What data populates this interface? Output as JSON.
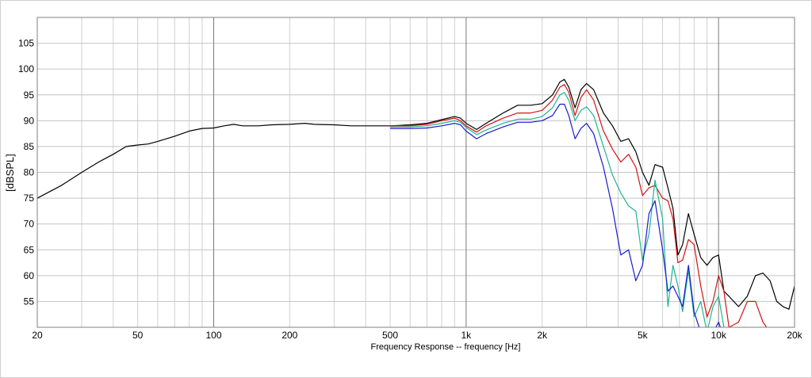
{
  "chart_data": {
    "type": "line",
    "title": "",
    "xlabel": "Frequency Response -- frequency [Hz]",
    "ylabel": "[dBSPL]",
    "xscale": "log",
    "xlim": [
      20,
      20000
    ],
    "ylim": [
      50,
      110
    ],
    "grid": true,
    "legend": "none",
    "x_tick_labels": [
      {
        "value": 20,
        "label": "20"
      },
      {
        "value": 50,
        "label": "50"
      },
      {
        "value": 100,
        "label": "100"
      },
      {
        "value": 200,
        "label": "200"
      },
      {
        "value": 500,
        "label": "500"
      },
      {
        "value": 1000,
        "label": "1k"
      },
      {
        "value": 2000,
        "label": "2k"
      },
      {
        "value": 5000,
        "label": "5k"
      },
      {
        "value": 10000,
        "label": "10k"
      },
      {
        "value": 20000,
        "label": "20k"
      }
    ],
    "y_tick_labels": [
      {
        "value": 55,
        "label": "55"
      },
      {
        "value": 60,
        "label": "60"
      },
      {
        "value": 65,
        "label": "65"
      },
      {
        "value": 70,
        "label": "70"
      },
      {
        "value": 75,
        "label": "75"
      },
      {
        "value": 80,
        "label": "80"
      },
      {
        "value": 85,
        "label": "85"
      },
      {
        "value": 90,
        "label": "90"
      },
      {
        "value": 95,
        "label": "95"
      },
      {
        "value": 100,
        "label": "100"
      },
      {
        "value": 105,
        "label": "105"
      }
    ],
    "series": [
      {
        "color": "#000000",
        "points": [
          [
            20,
            75
          ],
          [
            25,
            77.5
          ],
          [
            30,
            80
          ],
          [
            35,
            82
          ],
          [
            40,
            83.5
          ],
          [
            45,
            85
          ],
          [
            50,
            85.3
          ],
          [
            55,
            85.5
          ],
          [
            60,
            86
          ],
          [
            70,
            87
          ],
          [
            80,
            88
          ],
          [
            90,
            88.5
          ],
          [
            100,
            88.6
          ],
          [
            110,
            89
          ],
          [
            120,
            89.3
          ],
          [
            130,
            89
          ],
          [
            150,
            89
          ],
          [
            170,
            89.2
          ],
          [
            200,
            89.3
          ],
          [
            230,
            89.5
          ],
          [
            250,
            89.3
          ],
          [
            300,
            89.2
          ],
          [
            350,
            89
          ],
          [
            400,
            89
          ],
          [
            500,
            89
          ],
          [
            600,
            89.2
          ],
          [
            700,
            89.5
          ],
          [
            800,
            90.2
          ],
          [
            900,
            90.8
          ],
          [
            950,
            90.5
          ],
          [
            1000,
            89.5
          ],
          [
            1100,
            88.3
          ],
          [
            1200,
            89.5
          ],
          [
            1400,
            91.5
          ],
          [
            1600,
            93
          ],
          [
            1800,
            93
          ],
          [
            2000,
            93.3
          ],
          [
            2200,
            95
          ],
          [
            2350,
            97.5
          ],
          [
            2450,
            98
          ],
          [
            2550,
            96.5
          ],
          [
            2700,
            92.5
          ],
          [
            2850,
            96
          ],
          [
            3000,
            97.2
          ],
          [
            3200,
            96
          ],
          [
            3500,
            91.5
          ],
          [
            3800,
            89
          ],
          [
            4100,
            86
          ],
          [
            4400,
            86.5
          ],
          [
            4700,
            84
          ],
          [
            5000,
            80
          ],
          [
            5300,
            77.5
          ],
          [
            5600,
            81.5
          ],
          [
            6000,
            81
          ],
          [
            6300,
            77
          ],
          [
            6600,
            73
          ],
          [
            6900,
            64
          ],
          [
            7200,
            66
          ],
          [
            7600,
            72
          ],
          [
            8000,
            68
          ],
          [
            8500,
            63.5
          ],
          [
            9000,
            62
          ],
          [
            9500,
            63.5
          ],
          [
            10000,
            64
          ],
          [
            10500,
            57
          ],
          [
            11000,
            56
          ],
          [
            12000,
            54
          ],
          [
            13000,
            56
          ],
          [
            14000,
            60
          ],
          [
            15000,
            60.5
          ],
          [
            16000,
            59
          ],
          [
            17000,
            55
          ],
          [
            18000,
            54
          ],
          [
            19000,
            53.5
          ],
          [
            20000,
            58
          ]
        ]
      },
      {
        "color": "#d21414",
        "points": [
          [
            500,
            89
          ],
          [
            600,
            89
          ],
          [
            700,
            89.3
          ],
          [
            800,
            90
          ],
          [
            900,
            90.5
          ],
          [
            950,
            90
          ],
          [
            1000,
            89
          ],
          [
            1100,
            87.8
          ],
          [
            1200,
            89
          ],
          [
            1400,
            90.5
          ],
          [
            1600,
            91.5
          ],
          [
            1800,
            91.5
          ],
          [
            2000,
            92
          ],
          [
            2200,
            94
          ],
          [
            2350,
            96.5
          ],
          [
            2450,
            97
          ],
          [
            2550,
            95.5
          ],
          [
            2700,
            91
          ],
          [
            2850,
            94.5
          ],
          [
            3000,
            96
          ],
          [
            3200,
            94
          ],
          [
            3500,
            88
          ],
          [
            3800,
            84.5
          ],
          [
            4100,
            82
          ],
          [
            4400,
            83.5
          ],
          [
            4700,
            81
          ],
          [
            5000,
            75.5
          ],
          [
            5300,
            77
          ],
          [
            5600,
            77.5
          ],
          [
            6000,
            75
          ],
          [
            6300,
            74.5
          ],
          [
            6600,
            71
          ],
          [
            6900,
            62.5
          ],
          [
            7200,
            63
          ],
          [
            7600,
            67
          ],
          [
            8000,
            66
          ],
          [
            8500,
            58
          ],
          [
            9000,
            52
          ],
          [
            9500,
            55
          ],
          [
            10000,
            60
          ],
          [
            10500,
            57
          ],
          [
            11000,
            50
          ],
          [
            12000,
            51
          ],
          [
            13000,
            55
          ],
          [
            14000,
            55
          ],
          [
            15000,
            51
          ],
          [
            16000,
            49
          ]
        ]
      },
      {
        "color": "#1fb58f",
        "points": [
          [
            500,
            88.8
          ],
          [
            600,
            88.8
          ],
          [
            700,
            89
          ],
          [
            800,
            89.5
          ],
          [
            900,
            90
          ],
          [
            950,
            89.7
          ],
          [
            1000,
            88.7
          ],
          [
            1100,
            87.3
          ],
          [
            1200,
            88.2
          ],
          [
            1400,
            89.5
          ],
          [
            1600,
            90.3
          ],
          [
            1800,
            90.3
          ],
          [
            2000,
            90.8
          ],
          [
            2200,
            92.5
          ],
          [
            2350,
            95
          ],
          [
            2450,
            95.5
          ],
          [
            2550,
            94
          ],
          [
            2700,
            90
          ],
          [
            2850,
            92
          ],
          [
            3000,
            92.7
          ],
          [
            3200,
            91
          ],
          [
            3500,
            85
          ],
          [
            3800,
            79.5
          ],
          [
            4100,
            76
          ],
          [
            4400,
            73.5
          ],
          [
            4700,
            72.5
          ],
          [
            5000,
            63
          ],
          [
            5300,
            68
          ],
          [
            5600,
            78.5
          ],
          [
            6000,
            71
          ],
          [
            6300,
            54
          ],
          [
            6600,
            62
          ],
          [
            6900,
            58
          ],
          [
            7200,
            53
          ],
          [
            7600,
            61
          ],
          [
            8000,
            52
          ],
          [
            8500,
            55
          ],
          [
            9000,
            49
          ],
          [
            9500,
            54
          ],
          [
            10000,
            56
          ],
          [
            10500,
            50
          ]
        ]
      },
      {
        "color": "#1a1ad1",
        "points": [
          [
            500,
            88.5
          ],
          [
            600,
            88.5
          ],
          [
            700,
            88.6
          ],
          [
            800,
            89
          ],
          [
            900,
            89.5
          ],
          [
            950,
            89.2
          ],
          [
            1000,
            88
          ],
          [
            1100,
            86.5
          ],
          [
            1200,
            87.5
          ],
          [
            1400,
            88.8
          ],
          [
            1600,
            89.7
          ],
          [
            1800,
            89.7
          ],
          [
            2000,
            90
          ],
          [
            2200,
            91
          ],
          [
            2350,
            93.2
          ],
          [
            2450,
            93.2
          ],
          [
            2550,
            91
          ],
          [
            2700,
            86.5
          ],
          [
            2850,
            88.5
          ],
          [
            3000,
            89.5
          ],
          [
            3200,
            87.5
          ],
          [
            3500,
            81
          ],
          [
            3800,
            73
          ],
          [
            4100,
            64
          ],
          [
            4400,
            65
          ],
          [
            4700,
            59
          ],
          [
            5000,
            62
          ],
          [
            5300,
            72
          ],
          [
            5600,
            74.5
          ],
          [
            6000,
            65
          ],
          [
            6300,
            57
          ],
          [
            6600,
            58
          ],
          [
            6900,
            56
          ],
          [
            7200,
            54
          ],
          [
            7600,
            62
          ],
          [
            8000,
            53
          ],
          [
            8500,
            49
          ],
          [
            9000,
            50
          ],
          [
            9500,
            49
          ],
          [
            10000,
            51
          ],
          [
            10500,
            48
          ]
        ]
      }
    ]
  }
}
